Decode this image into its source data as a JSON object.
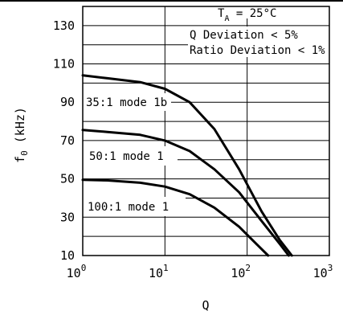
{
  "chart_data": {
    "type": "line",
    "xlabel": "Q",
    "ylabel": "f0 (kHz)",
    "xscale": "log",
    "xlim": [
      1,
      1000
    ],
    "ylim": [
      10,
      140
    ],
    "grid": true,
    "x_ticks": [
      {
        "value": 1,
        "base": "10",
        "exp": "0"
      },
      {
        "value": 10,
        "base": "10",
        "exp": "1"
      },
      {
        "value": 100,
        "base": "10",
        "exp": "2"
      },
      {
        "value": 1000,
        "base": "10",
        "exp": "3"
      }
    ],
    "y_ticks": [
      130,
      110,
      90,
      70,
      50,
      30,
      10
    ],
    "annotations": {
      "ta_main": "T",
      "ta_sub": "A",
      "ta_rest": " = 25°C",
      "q_dev": "Q Deviation < 5%",
      "ratio_dev": "Ratio Deviation < 1%"
    },
    "series": [
      {
        "name": "35:1 mode 1b",
        "x": [
          1,
          2,
          5,
          10,
          20,
          40,
          80,
          150,
          250,
          350
        ],
        "y": [
          104,
          102.5,
          100.5,
          97,
          90,
          76,
          55,
          33,
          18,
          10
        ]
      },
      {
        "name": "50:1 mode 1",
        "x": [
          1,
          2,
          5,
          10,
          20,
          40,
          80,
          150,
          250,
          320
        ],
        "y": [
          75.5,
          74.5,
          73,
          70,
          64.5,
          55,
          43,
          28,
          16,
          10
        ]
      },
      {
        "name": "100:1 mode 1",
        "x": [
          1,
          2,
          5,
          10,
          20,
          40,
          80,
          130,
          180
        ],
        "y": [
          49.5,
          49.2,
          48,
          46,
          42,
          35,
          25,
          16,
          10
        ]
      }
    ]
  }
}
